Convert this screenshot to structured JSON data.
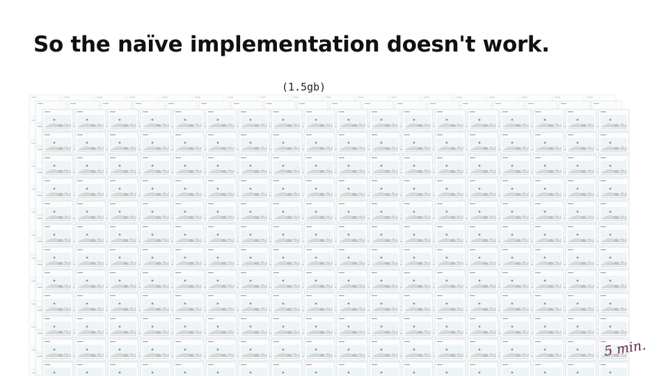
{
  "slide": {
    "title": "So the naïve implementation doesn't work.",
    "caption": "(1.5gb)",
    "timer_note": "5 min."
  },
  "thumbnail_grid": {
    "description_name": "thumbnail-grid",
    "layers": 3,
    "colors": {
      "thumb_border": "#d4d8dc",
      "thumb_bg": "#fbfcfd",
      "sky": "#e6eef2",
      "hill": "#c9d3cc",
      "accent": "#c8a8b4",
      "dot": "#8a8f96"
    }
  }
}
